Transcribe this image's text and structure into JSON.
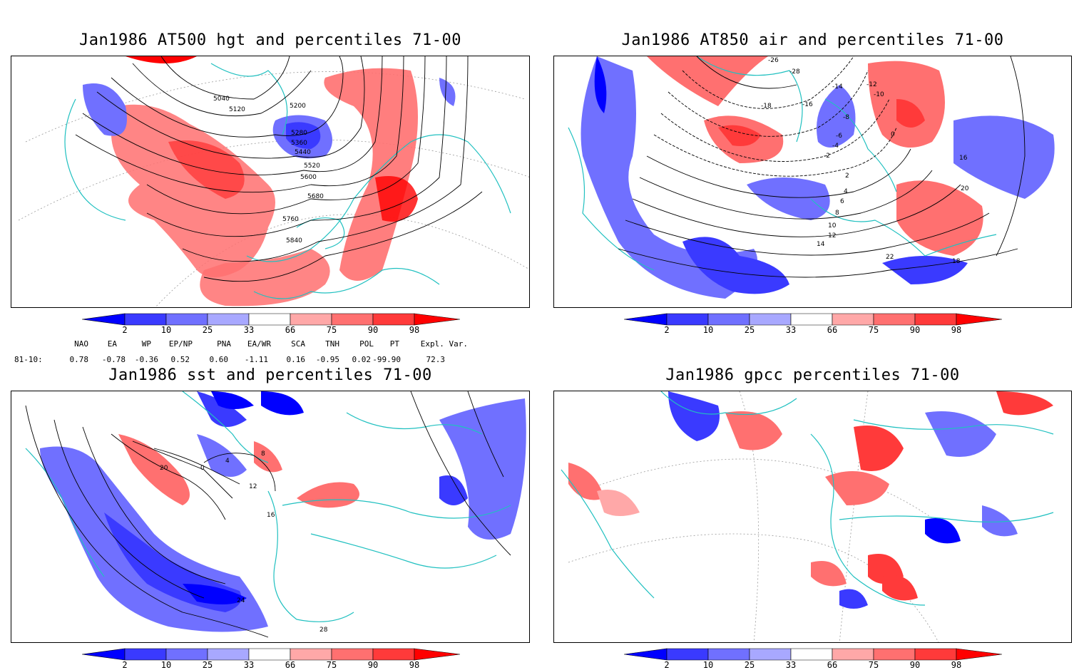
{
  "panels": [
    {
      "id": "p1",
      "title": "Jan1986 AT500 hgt and percentiles 71-00",
      "contour_labels": [
        "5040",
        "5120",
        "5200",
        "5280",
        "5360",
        "5440",
        "5520",
        "5600",
        "5680",
        "5760",
        "5840"
      ]
    },
    {
      "id": "p2",
      "title": "Jan1986 AT850 air and percentiles 71-00",
      "contour_labels": [
        "-26",
        "-28",
        "-18",
        "-16",
        "-12",
        "-10",
        "-14",
        "-8",
        "-6",
        "-4",
        "-2",
        "0",
        "2",
        "4",
        "6",
        "8",
        "10",
        "12",
        "14",
        "16",
        "18",
        "20",
        "22"
      ]
    },
    {
      "id": "p3",
      "title": "Jan1986 sst and percentiles 71-00",
      "contour_labels": [
        "0",
        "4",
        "8",
        "12",
        "16",
        "20",
        "24",
        "28"
      ]
    },
    {
      "id": "p4",
      "title": "Jan1986 gpcc percentiles 71-00",
      "contour_labels": []
    }
  ],
  "colorbar": {
    "ticks": [
      "2",
      "10",
      "25",
      "33",
      "66",
      "75",
      "90",
      "98"
    ],
    "colors": [
      "#0000ff",
      "#3a3aff",
      "#7070ff",
      "#a8a8ff",
      "#ffffff",
      "#ffa8a8",
      "#ff7070",
      "#ff3a3a",
      "#ff0000"
    ]
  },
  "indices": {
    "row_label": "81-10:",
    "names": [
      "NAO",
      "EA",
      "WP",
      "EP/NP",
      "PNA",
      "EA/WR",
      "SCA",
      "TNH",
      "POL",
      "PT",
      "Expl. Var."
    ],
    "values": [
      "0.78",
      "-0.78",
      "-0.36",
      "0.52",
      "0.60",
      "-1.11",
      "0.16",
      "-0.95",
      "0.02",
      "-99.90",
      "72.3"
    ]
  }
}
